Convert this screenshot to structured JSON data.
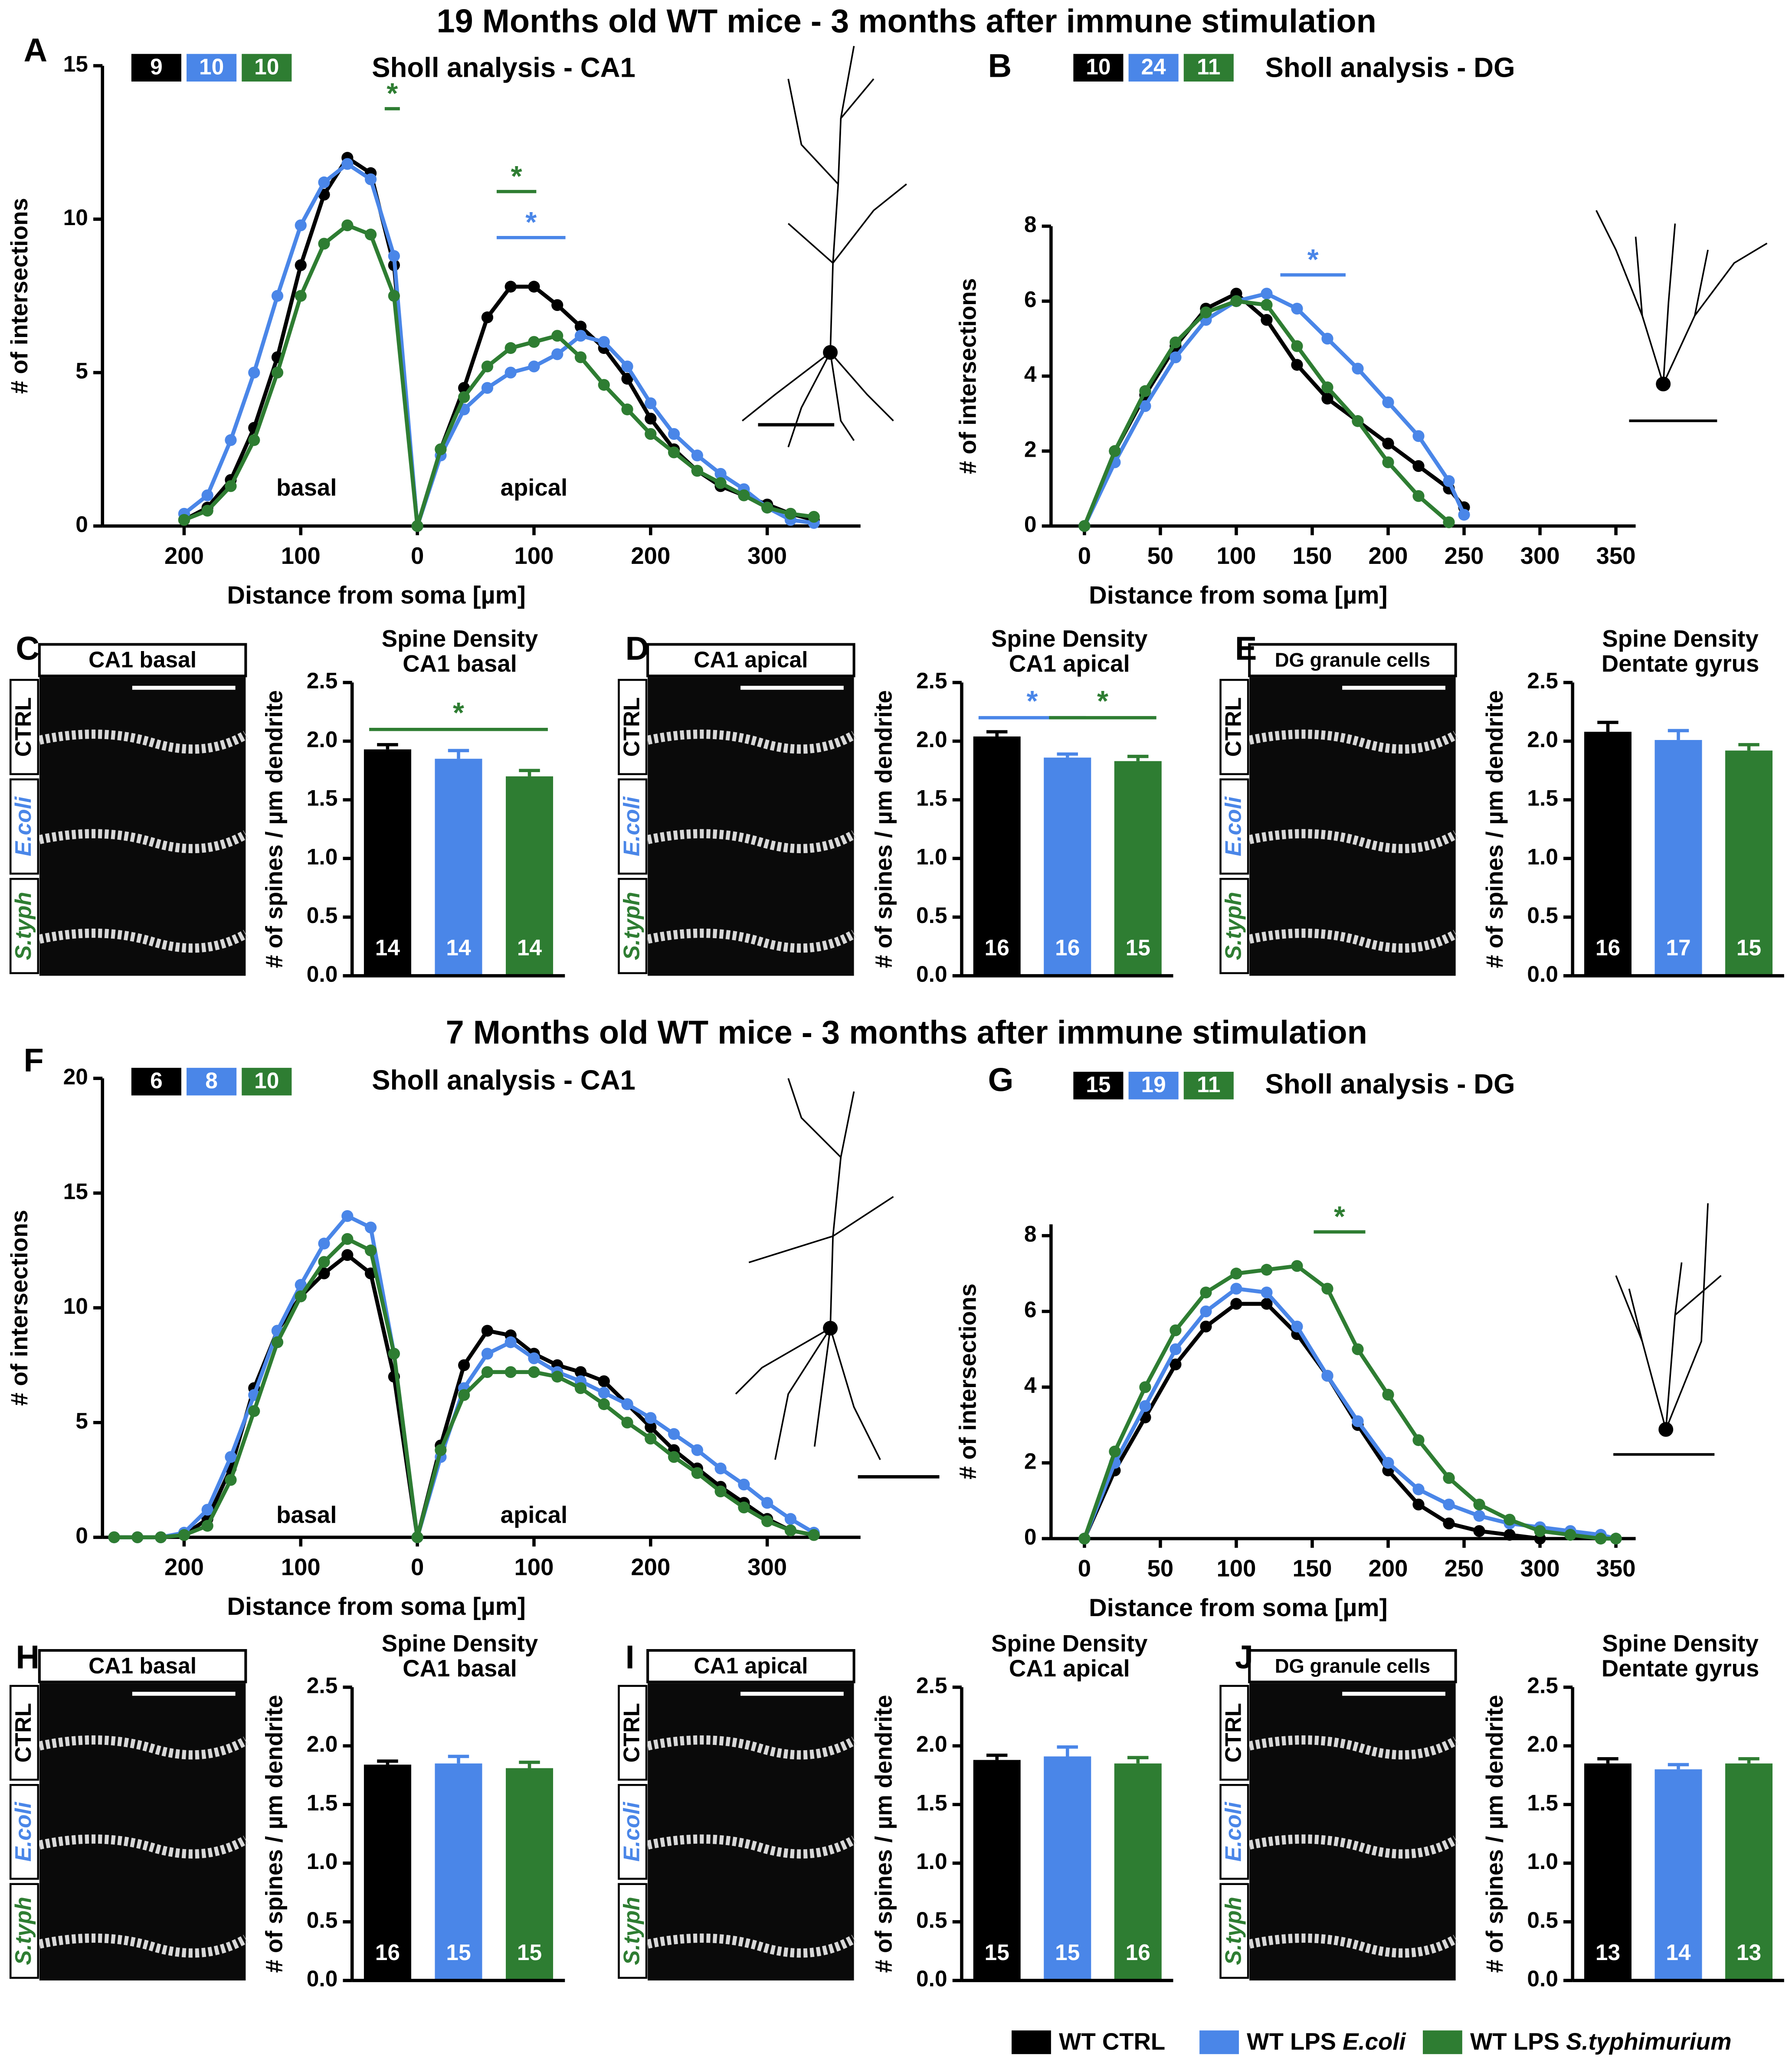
{
  "figure": {
    "titles": [
      "19 Months old WT mice - 3 months after immune stimulation",
      "7 Months old WT mice - 3 months after immune stimulation"
    ],
    "legend": [
      {
        "name": "WT CTRL",
        "color": "#000000"
      },
      {
        "name": "WT LPS",
        "species": "E.coli",
        "color": "#4a86e8"
      },
      {
        "name": "WT LPS",
        "species": "S.typhimurium",
        "color": "#2e7d32"
      }
    ]
  },
  "chart_data": [
    {
      "type": "sholl",
      "panel": "A",
      "title": "Sholl analysis - CA1",
      "xlabel": "Distance from soma [µm]",
      "ylabel": "# of intersections",
      "x": [
        -200,
        -180,
        -160,
        -140,
        -120,
        -100,
        -80,
        -60,
        -40,
        -20,
        0,
        20,
        40,
        60,
        80,
        100,
        120,
        140,
        160,
        180,
        200,
        220,
        240,
        260,
        280,
        300,
        320,
        340
      ],
      "xlim": [
        -270,
        380
      ],
      "xticks": [
        {
          "value": -200,
          "label": "200"
        },
        {
          "value": -100,
          "label": "100"
        },
        0,
        100,
        200,
        300
      ],
      "ylim": [
        0,
        15
      ],
      "yticks": [
        0,
        5,
        10,
        15
      ],
      "series": [
        {
          "color": "#000000",
          "n": 9,
          "values": [
            0.2,
            0.6,
            1.5,
            3.2,
            5.5,
            8.5,
            10.8,
            12,
            11.5,
            8.5,
            0,
            2.5,
            4.5,
            6.8,
            7.8,
            7.8,
            7.2,
            6.5,
            5.8,
            4.8,
            3.5,
            2.5,
            1.8,
            1.3,
            1.0,
            0.7,
            0.4,
            0.2
          ]
        },
        {
          "color": "#4a86e8",
          "n": 10,
          "values": [
            0.4,
            1.0,
            2.8,
            5.0,
            7.5,
            9.8,
            11.2,
            11.8,
            11.3,
            8.8,
            0,
            2.3,
            3.8,
            4.5,
            5.0,
            5.2,
            5.6,
            6.2,
            6.0,
            5.2,
            4.0,
            3.0,
            2.3,
            1.7,
            1.2,
            0.6,
            0.2,
            0.1
          ]
        },
        {
          "color": "#2e7d32",
          "n": 10,
          "values": [
            0.2,
            0.5,
            1.3,
            2.8,
            5,
            7.5,
            9.2,
            9.8,
            9.5,
            7.5,
            0,
            2.5,
            4.2,
            5.2,
            5.8,
            6.0,
            6.2,
            5.5,
            4.6,
            3.8,
            3.0,
            2.4,
            1.8,
            1.4,
            1.0,
            0.6,
            0.4,
            0.3
          ]
        }
      ],
      "annotations": [
        {
          "text": "basal",
          "x": -95,
          "y": 1.2
        },
        {
          "text": "apical",
          "x": 100,
          "y": 1.2
        }
      ],
      "significance": [
        {
          "label": "*",
          "color": "#2e7d32",
          "x": [
            -28,
            -15
          ],
          "y": 13.6
        },
        {
          "label": "*",
          "color": "#2e7d32",
          "x": [
            68,
            102
          ],
          "y": 10.9
        },
        {
          "label": "*",
          "color": "#4a86e8",
          "x": [
            68,
            127
          ],
          "y": 9.4
        }
      ]
    },
    {
      "type": "sholl",
      "panel": "B",
      "title": "Sholl analysis - DG",
      "xlabel": "Distance from soma [µm]",
      "ylabel": "# of intersections",
      "x": [
        0,
        20,
        40,
        60,
        80,
        100,
        120,
        140,
        160,
        180,
        200,
        220,
        240,
        250
      ],
      "xlim": [
        -22,
        363
      ],
      "xticks": [
        0,
        50,
        100,
        150,
        200,
        250,
        300,
        350
      ],
      "ylim": [
        0,
        8
      ],
      "yticks": [
        0,
        2,
        4,
        6,
        8
      ],
      "series": [
        {
          "color": "#000000",
          "n": 10,
          "values": [
            0,
            2,
            3.5,
            4.8,
            5.8,
            6.2,
            5.5,
            4.3,
            3.4,
            2.8,
            2.2,
            1.6,
            1.0,
            0.5
          ]
        },
        {
          "color": "#4a86e8",
          "n": 24,
          "values": [
            0,
            1.7,
            3.2,
            4.5,
            5.5,
            6,
            6.2,
            5.8,
            5,
            4.2,
            3.3,
            2.4,
            1.2,
            0.3
          ]
        },
        {
          "color": "#2e7d32",
          "n": 11,
          "values": [
            0,
            2,
            3.6,
            4.9,
            5.7,
            6,
            5.9,
            4.8,
            3.7,
            2.8,
            1.7,
            0.8,
            0.1,
            null
          ]
        }
      ],
      "significance": [
        {
          "label": "*",
          "color": "#4a86e8",
          "x": [
            129,
            172
          ],
          "y": 6.7
        }
      ]
    },
    {
      "type": "bar",
      "panel": "C",
      "title": "Spine Density",
      "subtitle": "CA1 basal",
      "ylabel": "# of spines / µm dendrite",
      "micrograph": {
        "title": "CA1 basal",
        "rows": [
          "CTRL",
          "E.coli",
          "S.typh"
        ]
      },
      "ylim": [
        0,
        2.5
      ],
      "yticks": [
        {
          "value": 0,
          "label": "0.0"
        },
        0.5,
        {
          "value": 1,
          "label": "1.0"
        },
        1.5,
        {
          "value": 2,
          "label": "2.0"
        },
        2.5
      ],
      "values": [
        1.93,
        1.85,
        1.7
      ],
      "errors": [
        0.04,
        0.07,
        0.05
      ],
      "n": [
        14,
        14,
        14
      ],
      "colors": [
        "#000000",
        "#4a86e8",
        "#2e7d32"
      ],
      "significance": [
        {
          "label": "*",
          "color": "#2e7d32",
          "bars": [
            0,
            2
          ],
          "y": 2.1
        }
      ]
    },
    {
      "type": "bar",
      "panel": "D",
      "title": "Spine Density",
      "subtitle": "CA1 apical",
      "ylabel": "# of spines / µm dendrite",
      "micrograph": {
        "title": "CA1 apical",
        "rows": [
          "CTRL",
          "E.coli",
          "S.typh"
        ]
      },
      "ylim": [
        0,
        2.5
      ],
      "yticks": [
        {
          "value": 0,
          "label": "0.0"
        },
        0.5,
        {
          "value": 1,
          "label": "1.0"
        },
        1.5,
        {
          "value": 2,
          "label": "2.0"
        },
        2.5
      ],
      "values": [
        2.04,
        1.86,
        1.83
      ],
      "errors": [
        0.04,
        0.03,
        0.04
      ],
      "n": [
        16,
        16,
        15
      ],
      "colors": [
        "#000000",
        "#4a86e8",
        "#2e7d32"
      ],
      "significance": [
        {
          "label": "*",
          "color": "#4a86e8",
          "bars": [
            0,
            1
          ],
          "y": 2.2
        },
        {
          "label": "*",
          "color": "#2e7d32",
          "bars": [
            1,
            2
          ],
          "y": 2.2
        }
      ]
    },
    {
      "type": "bar",
      "panel": "E",
      "title": "Spine Density",
      "subtitle": "Dentate gyrus",
      "ylabel": "# of spines / µm dendrite",
      "micrograph": {
        "title": "DG granule cells",
        "rows": [
          "CTRL",
          "E.coli",
          "S.typh"
        ]
      },
      "ylim": [
        0,
        2.5
      ],
      "yticks": [
        {
          "value": 0,
          "label": "0.0"
        },
        0.5,
        {
          "value": 1,
          "label": "1.0"
        },
        1.5,
        {
          "value": 2,
          "label": "2.0"
        },
        2.5
      ],
      "values": [
        2.08,
        2.01,
        1.92
      ],
      "errors": [
        0.08,
        0.08,
        0.05
      ],
      "n": [
        16,
        17,
        15
      ],
      "colors": [
        "#000000",
        "#4a86e8",
        "#2e7d32"
      ]
    },
    {
      "type": "sholl",
      "panel": "F",
      "title": "Sholl analysis - CA1",
      "xlabel": "Distance from soma [µm]",
      "ylabel": "# of intersections",
      "x": [
        -260,
        -240,
        -220,
        -200,
        -180,
        -160,
        -140,
        -120,
        -100,
        -80,
        -60,
        -40,
        -20,
        0,
        20,
        40,
        60,
        80,
        100,
        120,
        140,
        160,
        180,
        200,
        220,
        240,
        260,
        280,
        300,
        320,
        340
      ],
      "xlim": [
        -270,
        380
      ],
      "xticks": [
        {
          "value": -200,
          "label": "200"
        },
        {
          "value": -100,
          "label": "100"
        },
        0,
        100,
        200,
        300
      ],
      "ylim": [
        0,
        20
      ],
      "yticks": [
        0,
        5,
        10,
        15,
        20
      ],
      "series": [
        {
          "color": "#000000",
          "n": 6,
          "values": [
            0,
            0,
            0,
            0.1,
            0.8,
            3,
            6.5,
            9,
            10.5,
            11.5,
            12.3,
            11.5,
            7,
            0,
            4,
            7.5,
            9,
            8.8,
            8,
            7.5,
            7.2,
            6.8,
            5.8,
            4.8,
            3.8,
            3,
            2.2,
            1.5,
            0.8,
            0.3,
            0.1
          ]
        },
        {
          "color": "#4a86e8",
          "n": 8,
          "values": [
            0,
            0,
            0,
            0.2,
            1.2,
            3.5,
            6.2,
            9,
            11,
            12.8,
            14,
            13.5,
            8,
            0,
            3.5,
            6.5,
            8,
            8.5,
            7.8,
            7.2,
            6.8,
            6.3,
            5.8,
            5.2,
            4.5,
            3.8,
            3,
            2.3,
            1.5,
            0.8,
            0.2
          ]
        },
        {
          "color": "#2e7d32",
          "n": 10,
          "values": [
            0,
            0,
            0,
            0.1,
            0.5,
            2.5,
            5.5,
            8.5,
            10.5,
            12,
            13,
            12.5,
            8,
            0,
            3.8,
            6.2,
            7.2,
            7.2,
            7.2,
            7,
            6.5,
            5.8,
            5,
            4.3,
            3.5,
            2.8,
            2,
            1.3,
            0.7,
            0.3,
            0.1
          ]
        }
      ],
      "annotations": [
        {
          "text": "basal",
          "x": -95,
          "y": 0.9
        },
        {
          "text": "apical",
          "x": 100,
          "y": 0.9
        }
      ]
    },
    {
      "type": "sholl",
      "panel": "G",
      "title": "Sholl analysis - DG",
      "xlabel": "Distance from soma [µm]",
      "ylabel": "# of intersections",
      "x": [
        0,
        20,
        40,
        60,
        80,
        100,
        120,
        140,
        160,
        180,
        200,
        220,
        240,
        260,
        280,
        300,
        320,
        340,
        350
      ],
      "xlim": [
        -22,
        363
      ],
      "xticks": [
        0,
        50,
        100,
        150,
        200,
        250,
        300,
        350
      ],
      "ylim": [
        0,
        8.3
      ],
      "yticks": [
        0,
        2,
        4,
        6,
        8
      ],
      "series": [
        {
          "color": "#000000",
          "n": 15,
          "values": [
            0,
            1.8,
            3.2,
            4.6,
            5.6,
            6.2,
            6.2,
            5.4,
            4.3,
            3.0,
            1.8,
            0.9,
            0.4,
            0.2,
            0.1,
            0,
            null,
            null,
            null
          ]
        },
        {
          "color": "#4a86e8",
          "n": 19,
          "values": [
            0,
            2,
            3.5,
            5,
            6,
            6.6,
            6.5,
            5.6,
            4.3,
            3.1,
            2,
            1.3,
            0.9,
            0.6,
            0.4,
            0.3,
            0.2,
            0.1,
            0
          ]
        },
        {
          "color": "#2e7d32",
          "n": 11,
          "values": [
            0,
            2.3,
            4,
            5.5,
            6.5,
            7,
            7.1,
            7.2,
            6.6,
            5,
            3.8,
            2.6,
            1.6,
            0.9,
            0.5,
            0.2,
            0.1,
            0,
            0
          ]
        }
      ],
      "significance": [
        {
          "label": "*",
          "color": "#2e7d32",
          "x": [
            151,
            185
          ],
          "y": 8.1
        }
      ]
    },
    {
      "type": "bar",
      "panel": "H",
      "title": "Spine Density",
      "subtitle": "CA1 basal",
      "ylabel": "# of spines / µm dendrite",
      "micrograph": {
        "title": "CA1 basal",
        "rows": [
          "CTRL",
          "E.coli",
          "S.typh"
        ]
      },
      "ylim": [
        0,
        2.5
      ],
      "yticks": [
        {
          "value": 0,
          "label": "0.0"
        },
        0.5,
        {
          "value": 1,
          "label": "1.0"
        },
        1.5,
        {
          "value": 2,
          "label": "2.0"
        },
        2.5
      ],
      "values": [
        1.84,
        1.85,
        1.81
      ],
      "errors": [
        0.03,
        0.06,
        0.05
      ],
      "n": [
        16,
        15,
        15
      ],
      "colors": [
        "#000000",
        "#4a86e8",
        "#2e7d32"
      ]
    },
    {
      "type": "bar",
      "panel": "I",
      "title": "Spine Density",
      "subtitle": "CA1 apical",
      "ylabel": "# of spines / µm dendrite",
      "micrograph": {
        "title": "CA1 apical",
        "rows": [
          "CTRL",
          "E.coli",
          "S.typh"
        ]
      },
      "ylim": [
        0,
        2.5
      ],
      "yticks": [
        {
          "value": 0,
          "label": "0.0"
        },
        0.5,
        {
          "value": 1,
          "label": "1.0"
        },
        1.5,
        {
          "value": 2,
          "label": "2.0"
        },
        2.5
      ],
      "values": [
        1.88,
        1.91,
        1.85
      ],
      "errors": [
        0.04,
        0.08,
        0.05
      ],
      "n": [
        15,
        15,
        16
      ],
      "colors": [
        "#000000",
        "#4a86e8",
        "#2e7d32"
      ]
    },
    {
      "type": "bar",
      "panel": "J",
      "title": "Spine Density",
      "subtitle": "Dentate gyrus",
      "ylabel": "# of spines / µm dendrite",
      "micrograph": {
        "title": "DG granule cells",
        "rows": [
          "CTRL",
          "E.coli",
          "S.typh"
        ]
      },
      "ylim": [
        0,
        2.5
      ],
      "yticks": [
        {
          "value": 0,
          "label": "0.0"
        },
        0.5,
        {
          "value": 1,
          "label": "1.0"
        },
        1.5,
        {
          "value": 2,
          "label": "2.0"
        },
        2.5
      ],
      "values": [
        1.85,
        1.8,
        1.85
      ],
      "errors": [
        0.04,
        0.04,
        0.04
      ],
      "n": [
        13,
        14,
        13
      ],
      "colors": [
        "#000000",
        "#4a86e8",
        "#2e7d32"
      ]
    }
  ]
}
